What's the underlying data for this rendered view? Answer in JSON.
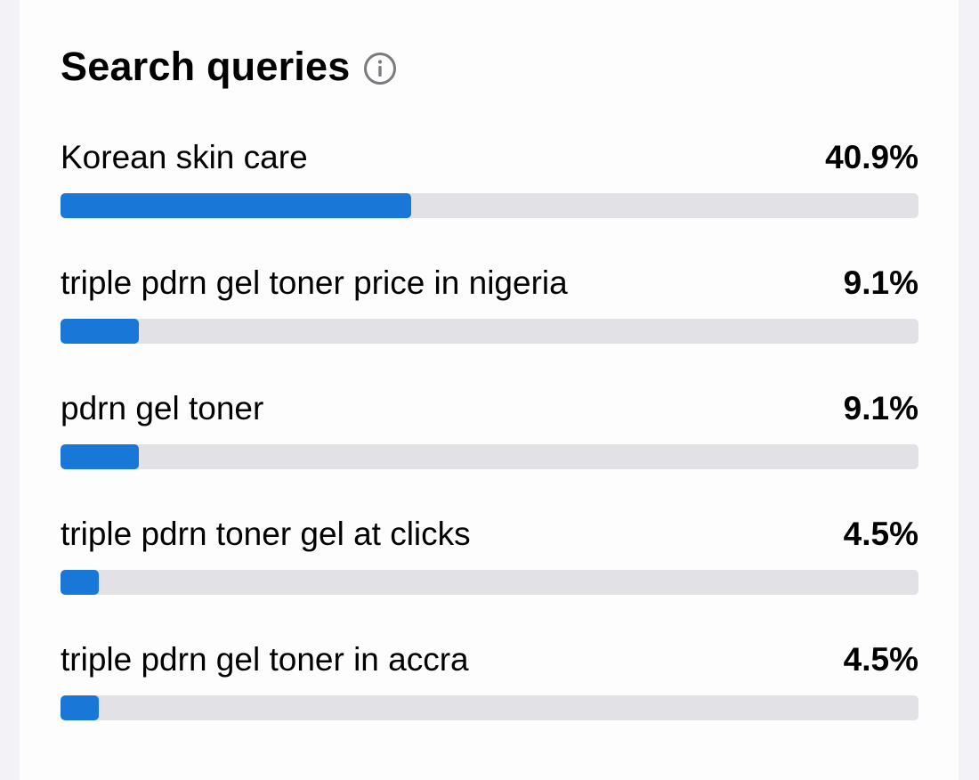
{
  "card": {
    "title": "Search queries",
    "info_icon": "info-circle-icon"
  },
  "queries": [
    {
      "label": "Korean skin care",
      "percent_text": "40.9%",
      "value": 40.9
    },
    {
      "label": "triple pdrn gel toner price in nigeria",
      "percent_text": "9.1%",
      "value": 9.1
    },
    {
      "label": "pdrn gel toner",
      "percent_text": "9.1%",
      "value": 9.1
    },
    {
      "label": "triple pdrn toner gel at clicks",
      "percent_text": "4.5%",
      "value": 4.5
    },
    {
      "label": "triple pdrn gel toner in accra",
      "percent_text": "4.5%",
      "value": 4.5
    }
  ],
  "colors": {
    "bar_fill": "#1877d7",
    "bar_track": "#e1e1e6"
  }
}
